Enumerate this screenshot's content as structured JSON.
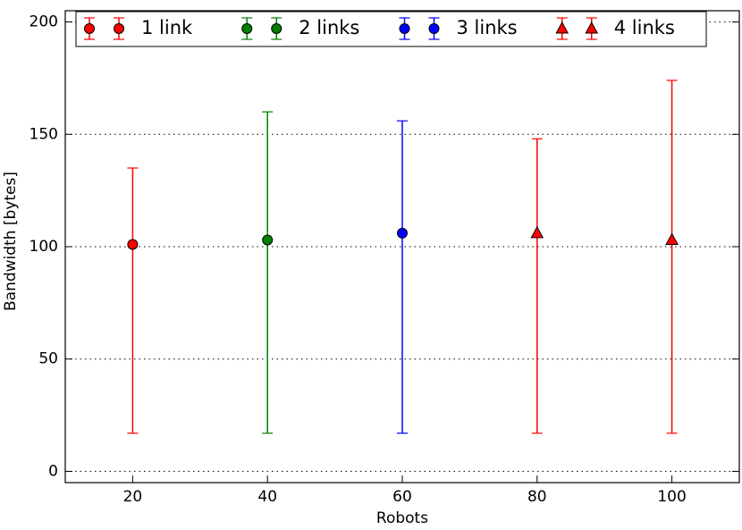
{
  "chart_data": {
    "type": "errorbar",
    "x_label": "Robots",
    "y_label": "Bandwidth [bytes]",
    "xlim": [
      10,
      110
    ],
    "ylim": [
      -5,
      205
    ],
    "xticks": [
      20,
      40,
      60,
      80,
      100
    ],
    "yticks": [
      0,
      50,
      100,
      150,
      200
    ],
    "grid": "y",
    "legend": "top",
    "series": [
      {
        "name": "1 link",
        "color": "#ff0000",
        "marker": "circle",
        "x": [
          20
        ],
        "values": [
          101
        ],
        "low": [
          17
        ],
        "high": [
          135
        ]
      },
      {
        "name": "2 links",
        "color": "#008000",
        "marker": "circle",
        "x": [
          40
        ],
        "values": [
          103
        ],
        "low": [
          17
        ],
        "high": [
          160
        ]
      },
      {
        "name": "3 links",
        "color": "#0000ff",
        "marker": "circle",
        "x": [
          60
        ],
        "values": [
          106
        ],
        "low": [
          17
        ],
        "high": [
          156
        ]
      },
      {
        "name": "4 links",
        "color": "#ff0000",
        "marker": "triangle",
        "x": [
          80,
          100
        ],
        "values": [
          106,
          103
        ],
        "low": [
          17,
          17
        ],
        "high": [
          148,
          174
        ]
      }
    ]
  }
}
